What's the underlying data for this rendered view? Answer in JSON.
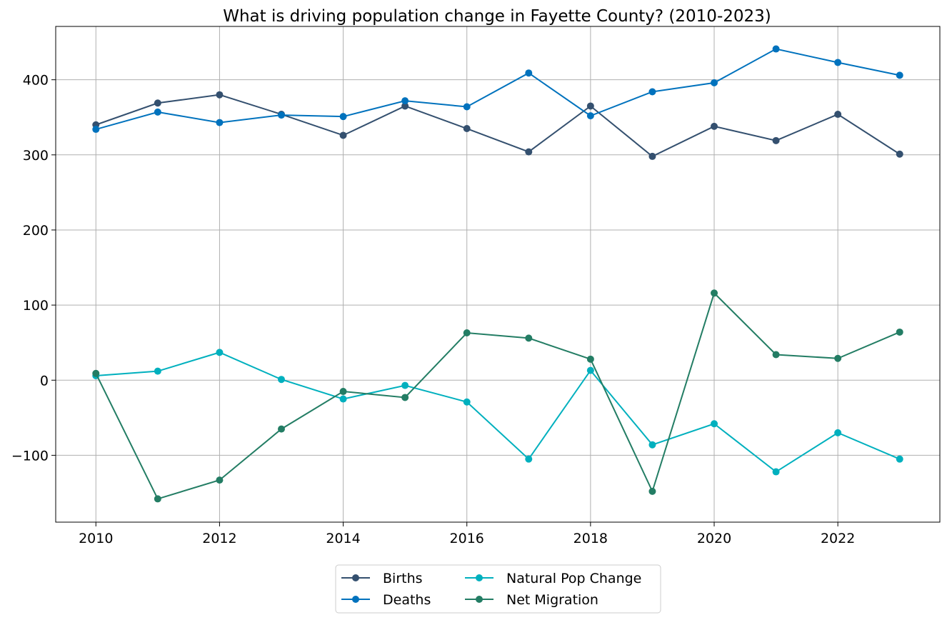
{
  "chart_data": {
    "type": "line",
    "title": "What is driving population change in Fayette County? (2010-2023)",
    "xlabel": "",
    "ylabel": "",
    "x": [
      2010,
      2011,
      2012,
      2013,
      2014,
      2015,
      2016,
      2017,
      2018,
      2019,
      2020,
      2021,
      2022,
      2023
    ],
    "x_ticks": [
      "2010",
      "2012",
      "2014",
      "2016",
      "2018",
      "2020",
      "2022"
    ],
    "y_ticks": [
      "−100",
      "0",
      "100",
      "200",
      "300",
      "400"
    ],
    "xlim": [
      2009.35,
      2023.65
    ],
    "ylim": [
      -189,
      471
    ],
    "grid": true,
    "legend_position": "bottom-center",
    "series": [
      {
        "name": "Births",
        "color": "#34506f",
        "values": [
          340,
          369,
          380,
          354,
          326,
          365,
          335,
          304,
          365,
          298,
          338,
          319,
          354,
          301
        ]
      },
      {
        "name": "Deaths",
        "color": "#0072bd",
        "values": [
          334,
          357,
          343,
          353,
          351,
          372,
          364,
          409,
          352,
          384,
          396,
          441,
          423,
          406
        ]
      },
      {
        "name": "Natural Pop Change",
        "color": "#00b0be",
        "values": [
          6,
          12,
          37,
          1,
          -25,
          -7,
          -29,
          -105,
          13,
          -86,
          -58,
          -122,
          -70,
          -105
        ]
      },
      {
        "name": "Net Migration",
        "color": "#237d64",
        "values": [
          9,
          -158,
          -133,
          -65,
          -15,
          -23,
          63,
          56,
          28,
          -148,
          116,
          34,
          29,
          64
        ]
      }
    ]
  }
}
